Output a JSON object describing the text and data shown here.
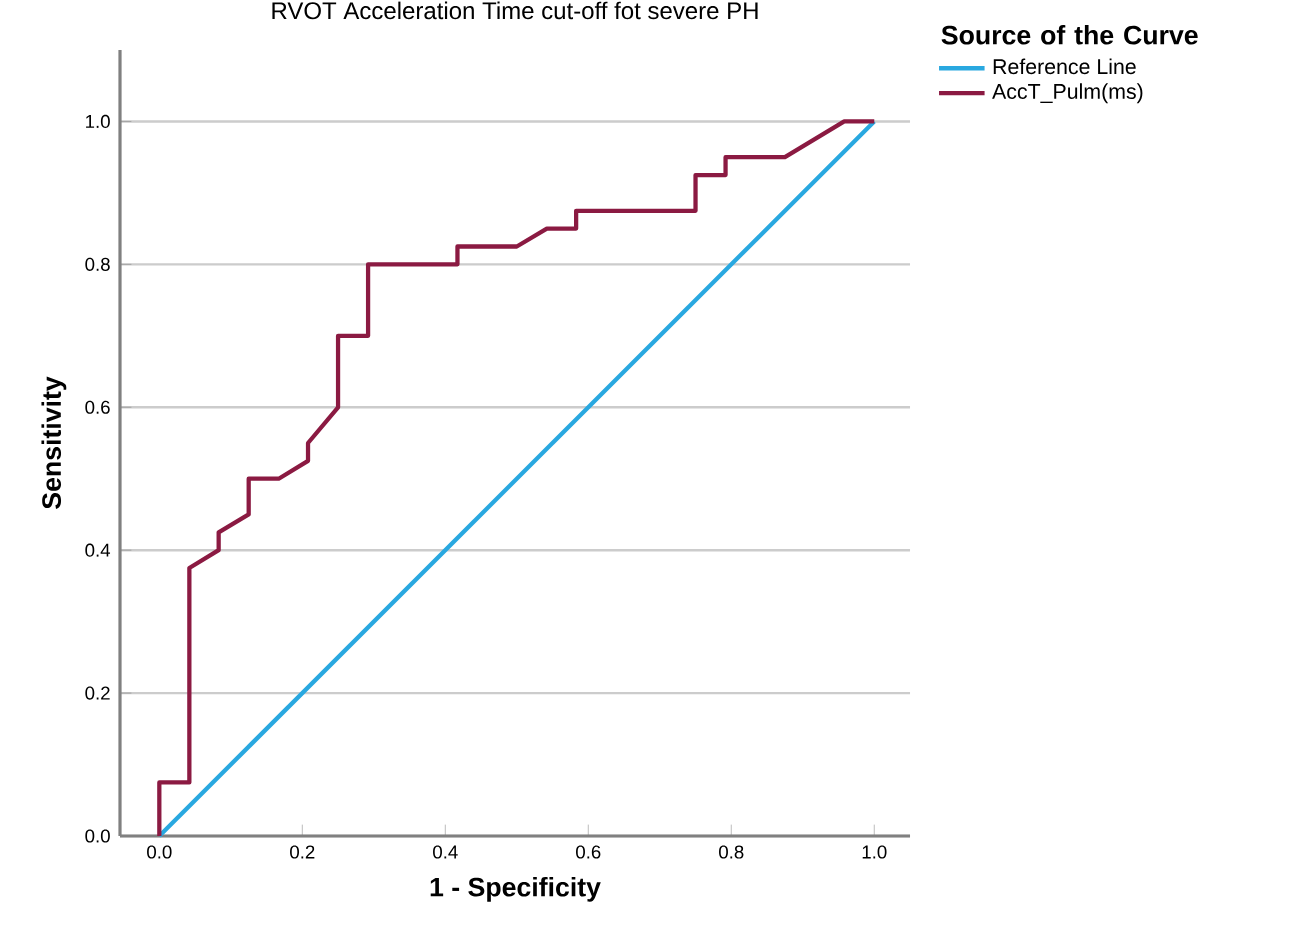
{
  "chart_data": {
    "type": "line",
    "title": "RVOT Acceleration Time cut-off fot severe PH",
    "xlabel": "1 - Specificity",
    "ylabel": "Sensitivity",
    "legend_title": "Source of the Curve",
    "xlim": [
      -0.055,
      1.05
    ],
    "ylim": [
      0,
      1.1
    ],
    "xticks": [
      {
        "value": 0,
        "label": "0.0"
      },
      {
        "value": 0.2,
        "label": "0.2"
      },
      {
        "value": 0.4,
        "label": "0.4"
      },
      {
        "value": 0.6,
        "label": "0.6"
      },
      {
        "value": 0.8,
        "label": "0.8"
      },
      {
        "value": 1,
        "label": "1.0"
      }
    ],
    "yticks": [
      {
        "value": 0,
        "label": "0.0"
      },
      {
        "value": 0.2,
        "label": "0.2"
      },
      {
        "value": 0.4,
        "label": "0.4"
      },
      {
        "value": 0.6,
        "label": "0.6"
      },
      {
        "value": 0.8,
        "label": "0.8"
      },
      {
        "value": 1,
        "label": "1.0"
      }
    ],
    "grid": "y",
    "legend": "right",
    "marker": "none",
    "line_style": "solid",
    "series": [
      {
        "name": "Reference Line",
        "color": "#29a8e0",
        "x": [
          0,
          1
        ],
        "values": [
          0,
          1
        ]
      },
      {
        "name": "AccT_Pulm(ms)",
        "color": "#8b1a42",
        "x": [
          0,
          0,
          0.042,
          0.042,
          0.083,
          0.083,
          0.125,
          0.125,
          0.167,
          0.208,
          0.208,
          0.25,
          0.25,
          0.292,
          0.292,
          0.417,
          0.417,
          0.5,
          0.542,
          0.583,
          0.583,
          0.75,
          0.75,
          0.792,
          0.792,
          0.875,
          0.958,
          1
        ],
        "values": [
          0,
          0.075,
          0.075,
          0.375,
          0.4,
          0.425,
          0.45,
          0.5,
          0.5,
          0.525,
          0.55,
          0.6,
          0.7,
          0.7,
          0.8,
          0.8,
          0.825,
          0.825,
          0.85,
          0.85,
          0.875,
          0.875,
          0.925,
          0.925,
          0.95,
          0.95,
          1,
          1
        ]
      }
    ]
  }
}
